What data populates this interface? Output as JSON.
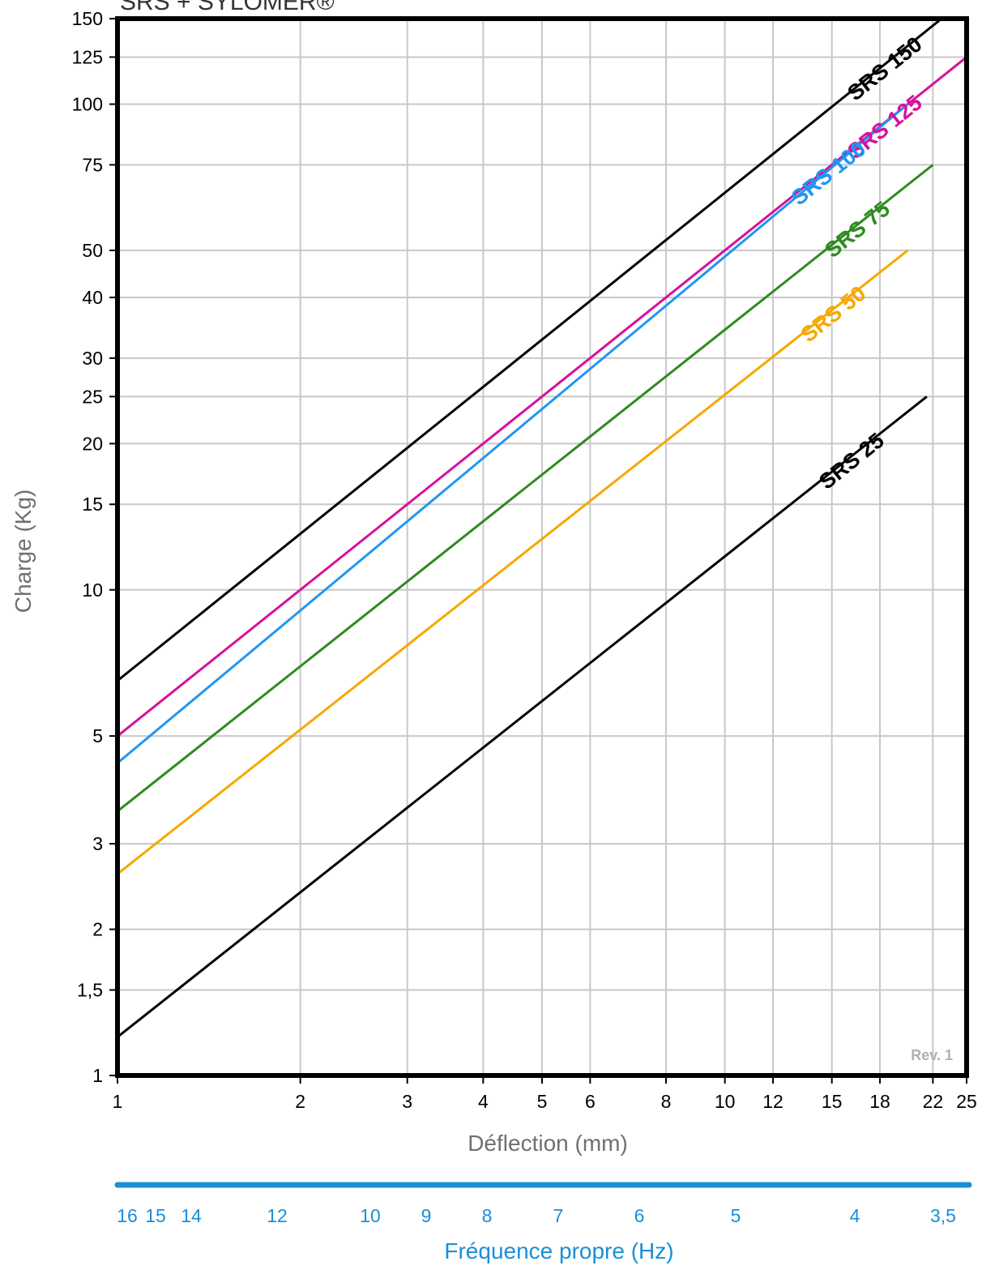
{
  "chart_data": {
    "type": "line",
    "title": "SRS + SYLOMER®",
    "xlabel": "Déflection (mm)",
    "ylabel": "Charge (Kg)",
    "x_scale": "log",
    "y_scale": "log",
    "xlim": [
      1,
      25
    ],
    "ylim": [
      1,
      150
    ],
    "x_ticks": [
      1,
      2,
      3,
      4,
      5,
      6,
      8,
      10,
      12,
      15,
      18,
      22,
      25
    ],
    "y_ticks": [
      1,
      1.5,
      2,
      3,
      5,
      10,
      15,
      20,
      25,
      30,
      40,
      50,
      75,
      100,
      125,
      150
    ],
    "x_tick_labels": [
      "1",
      "2",
      "3",
      "4",
      "5",
      "6",
      "8",
      "10",
      "12",
      "15",
      "18",
      "22",
      "25"
    ],
    "y_tick_labels": [
      "1",
      "1,5",
      "2",
      "3",
      "5",
      "10",
      "15",
      "20",
      "25",
      "30",
      "40",
      "50",
      "75",
      "100",
      "125",
      "150"
    ],
    "grid": true,
    "frequency_axis": {
      "label": "Fréquence propre (Hz)",
      "ticks": [
        "16",
        "15",
        "14",
        "12",
        "10",
        "9",
        "8",
        "7",
        "6",
        "5",
        "4",
        "3,5"
      ]
    },
    "annotations": [
      "Rev. 1"
    ],
    "series": [
      {
        "name": "SRS 150",
        "color": "#000000",
        "x": [
          1,
          25
        ],
        "y": [
          6.5,
          165
        ]
      },
      {
        "name": "SRS 125",
        "color": "#d6119b",
        "x": [
          1,
          25
        ],
        "y": [
          5.0,
          125
        ]
      },
      {
        "name": "SRS 100",
        "color": "#2196f3",
        "x": [
          1,
          20
        ],
        "y": [
          4.4,
          100
        ]
      },
      {
        "name": "SRS 75",
        "color": "#2e8b1f",
        "x": [
          1,
          22
        ],
        "y": [
          3.5,
          75
        ]
      },
      {
        "name": "SRS 50",
        "color": "#f5a800",
        "x": [
          1,
          20
        ],
        "y": [
          2.6,
          50
        ]
      },
      {
        "name": "SRS 25",
        "color": "#000000",
        "x": [
          1,
          21.5
        ],
        "y": [
          1.2,
          25
        ]
      }
    ]
  },
  "colors": {
    "frame": "#000000",
    "grid": "#c8c8c8",
    "frequency_axis": "#1a8fd6",
    "axis_title": "#707070"
  }
}
